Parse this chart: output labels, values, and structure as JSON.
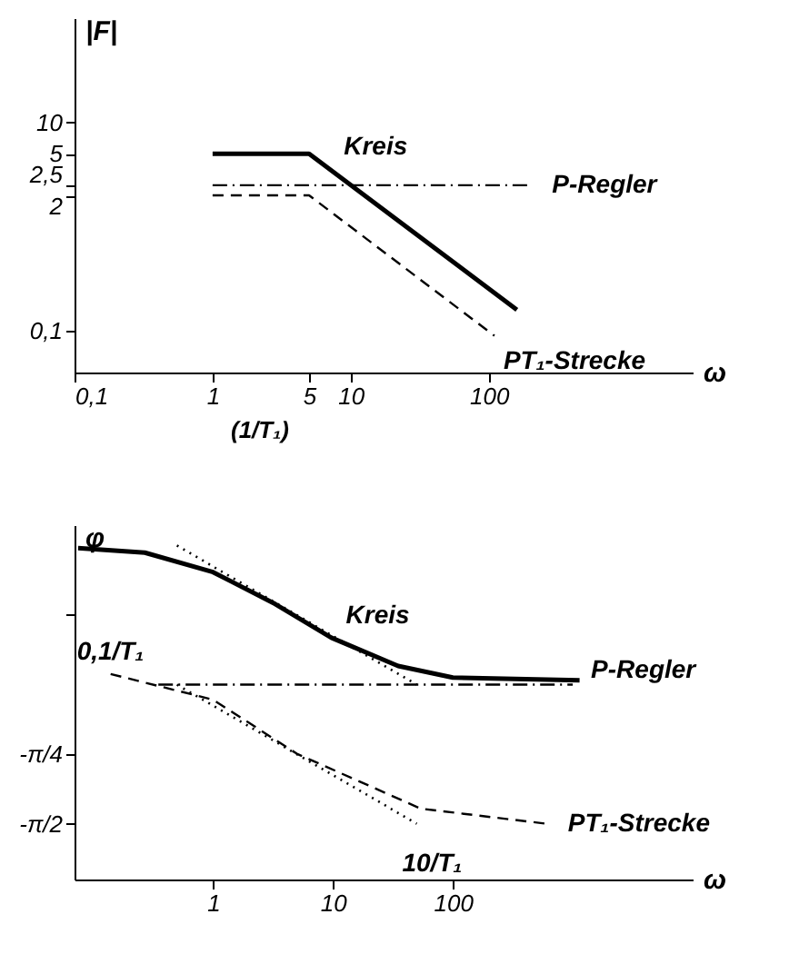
{
  "chart_data": [
    {
      "type": "line",
      "xlabel": "ω",
      "ylabel": "|F|",
      "log": "xy",
      "xlim": [
        0.1,
        3000
      ],
      "ylim": [
        0.04,
        100
      ],
      "xticks": [
        {
          "value": 0.1,
          "label": "0,1"
        },
        1,
        5,
        10,
        100
      ],
      "yticks": [
        {
          "value": 0.1,
          "label": "0,1"
        },
        2,
        {
          "value": 2.5,
          "label": "2,5"
        },
        5,
        10
      ],
      "grid": false,
      "series": [
        {
          "color": "#000000",
          "line_style": "solid",
          "x": [
            1,
            5,
            160
          ],
          "values": [
            5,
            5,
            0.16
          ]
        },
        {
          "color": "#000000",
          "line_style": "dashdot",
          "x": [
            1,
            200
          ],
          "values": [
            2.5,
            2.5
          ]
        },
        {
          "color": "#000000",
          "line_style": "dashed",
          "x": [
            1,
            5,
            110
          ],
          "values": [
            2,
            2,
            0.09
          ]
        }
      ],
      "annotations": [
        {
          "text": "Kreis",
          "x": 7,
          "y": 3.57
        },
        {
          "text": "P-Regler",
          "x": 200,
          "y": 2.5
        },
        {
          "text": "PT₁-Strecke",
          "x": 110,
          "y": 0.09
        },
        "(1/T₁)"
      ]
    },
    {
      "type": "line",
      "xlabel": "ω",
      "ylabel": "φ",
      "log": "x",
      "xlim": [
        0.07,
        10000
      ],
      "ylim": [
        -2.2,
        1.8
      ],
      "xticks": [
        1,
        10,
        100
      ],
      "yticks": [
        {
          "value": 0.785,
          "label": null
        },
        {
          "value": -0.785,
          "label": "-π/4"
        },
        {
          "value": -1.571,
          "label": "-π/2"
        }
      ],
      "grid": false,
      "series": [
        {
          "color": "#000000",
          "line_style": "solid",
          "x": [
            0.075,
            0.27,
            1,
            3.3,
            9.7,
            35,
            100,
            1140
          ],
          "values": [
            1.54,
            1.49,
            1.27,
            0.91,
            0.53,
            0.21,
            0.08,
            0.05
          ]
        },
        {
          "color": "#000000",
          "line_style": "dashdot",
          "x": [
            0.35,
            1000
          ],
          "values": [
            0,
            0
          ]
        },
        {
          "color": "#000000",
          "line_style": "dashed",
          "x": [
            0.14,
            1,
            5,
            54,
            600
          ],
          "values": [
            0.12,
            -0.17,
            -0.78,
            -1.4,
            -1.57
          ]
        },
        {
          "color": "#000000",
          "line_style": "dotted",
          "x": [
            0.5,
            50
          ],
          "values": [
            1.57,
            0
          ]
        },
        {
          "color": "#000000",
          "line_style": "dotted",
          "x": [
            0.5,
            50
          ],
          "values": [
            0,
            -1.57
          ]
        }
      ],
      "annotations": [
        {
          "text": "Kreis",
          "x": 9.7,
          "y": 0.53
        },
        {
          "text": "P-Regler",
          "x": 1000,
          "y": 0
        },
        {
          "text": "PT₁-Strecke",
          "x": 600,
          "y": -1.57
        },
        {
          "text": "0,1/T₁",
          "x": 0.5,
          "y": 0
        },
        {
          "text": "10/T₁",
          "x": 50,
          "y": -1.57
        }
      ]
    }
  ]
}
